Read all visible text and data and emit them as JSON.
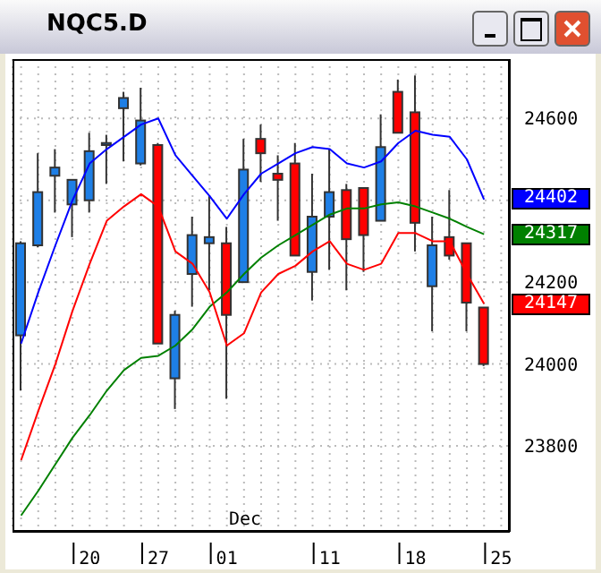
{
  "chart_data": {
    "type": "candlestick",
    "title": "NQC5.D",
    "categories": [
      null,
      null,
      null,
      null,
      "20",
      null,
      null,
      null,
      "27",
      null,
      null,
      null,
      "01",
      null,
      null,
      null,
      null,
      null,
      "11",
      null,
      null,
      null,
      null,
      "18",
      null,
      null,
      null,
      null,
      "25"
    ],
    "ohlc": [
      [
        24070,
        24300,
        23935,
        24295
      ],
      [
        24290,
        24515,
        24285,
        24420
      ],
      [
        24460,
        24525,
        24370,
        24480
      ],
      [
        24390,
        24450,
        24310,
        24450
      ],
      [
        24400,
        24565,
        24370,
        24520
      ],
      [
        24535,
        24560,
        24440,
        24540
      ],
      [
        24625,
        24665,
        24495,
        24650
      ],
      [
        24490,
        24675,
        24485,
        24595
      ],
      [
        24535,
        24540,
        24050,
        24050
      ],
      [
        23965,
        24130,
        23890,
        24120
      ],
      [
        24220,
        24360,
        24140,
        24315
      ],
      [
        24295,
        24410,
        24180,
        24310
      ],
      [
        24295,
        24335,
        23915,
        24120
      ],
      [
        24200,
        24550,
        24200,
        24475
      ],
      [
        24550,
        24585,
        24445,
        24515
      ],
      [
        24465,
        24510,
        24350,
        24450
      ],
      [
        24490,
        24540,
        24265,
        24265
      ],
      [
        24225,
        24465,
        24155,
        24360
      ],
      [
        24360,
        24525,
        24230,
        24420
      ],
      [
        24425,
        24440,
        24180,
        24305
      ],
      [
        24430,
        24430,
        24225,
        24315
      ],
      [
        24350,
        24610,
        24350,
        24530
      ],
      [
        24665,
        24695,
        24565,
        24565
      ],
      [
        24615,
        24705,
        24275,
        24345
      ],
      [
        24190,
        24360,
        24080,
        24290
      ],
      [
        24310,
        24425,
        24255,
        24265
      ],
      [
        24295,
        24295,
        24080,
        24150
      ],
      [
        24138,
        24138,
        23995,
        24000
      ],
      null
    ],
    "colors": [
      "#1e7fe6",
      "#1e7fe6",
      "#1e7fe6",
      "#1e7fe6",
      "#1e7fe6",
      "#1e7fe6",
      "#1e7fe6",
      "#1e7fe6",
      "#ff0000",
      "#1e7fe6",
      "#1e7fe6",
      "#1e7fe6",
      "#ff0000",
      "#1e7fe6",
      "#ff0000",
      "#ff0000",
      "#ff0000",
      "#1e7fe6",
      "#1e7fe6",
      "#ff0000",
      "#ff0000",
      "#1e7fe6",
      "#ff0000",
      "#ff0000",
      "#1e7fe6",
      "#ff0000",
      "#ff0000",
      "#ff0000",
      null
    ],
    "series": [
      {
        "type": "line",
        "color": "#0000ff",
        "values": [
          24050,
          24175,
          24290,
          24400,
          24490,
          24525,
          24555,
          24585,
          24600,
          24510,
          24460,
          24410,
          24355,
          24415,
          24465,
          24490,
          24515,
          24530,
          24525,
          24490,
          24480,
          24495,
          24540,
          24570,
          24560,
          24555,
          24500,
          24402,
          null
        ]
      },
      {
        "type": "line",
        "color": "#008000",
        "values": [
          23630,
          23690,
          23755,
          23820,
          23875,
          23935,
          23985,
          24015,
          24020,
          24045,
          24085,
          24140,
          24175,
          24220,
          24260,
          24290,
          24315,
          24340,
          24365,
          24380,
          24380,
          24390,
          24395,
          24385,
          24370,
          24355,
          24335,
          24317,
          null
        ]
      },
      {
        "type": "line",
        "color": "#ff0000",
        "values": [
          23765,
          23885,
          24000,
          24130,
          24245,
          24350,
          24385,
          24415,
          24385,
          24275,
          24245,
          24175,
          24045,
          24075,
          24175,
          24220,
          24240,
          24275,
          24300,
          24245,
          24230,
          24245,
          24320,
          24320,
          24300,
          24300,
          24220,
          24147,
          null
        ]
      }
    ],
    "ylim": [
      23590,
      24745
    ],
    "yticks": [
      23800,
      24000,
      24200,
      {
        "value": 24400,
        "label": null
      },
      24600
    ],
    "grid": true,
    "legend": false,
    "annotations": [
      "Dec",
      "24402",
      "24317",
      "24147"
    ]
  }
}
